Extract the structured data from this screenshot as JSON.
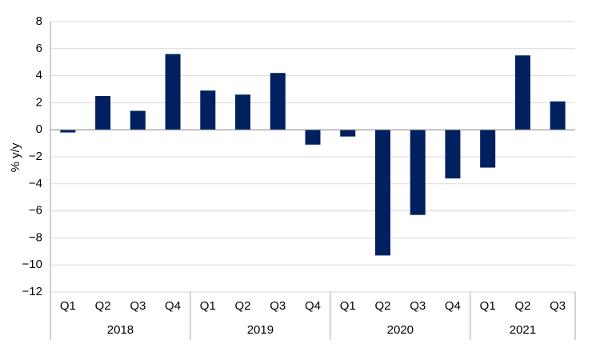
{
  "chart_data": {
    "type": "bar",
    "ylabel": "% y/y",
    "ylim": [
      -12,
      8
    ],
    "yticks": [
      8,
      6,
      4,
      2,
      0,
      -2,
      -4,
      -6,
      -8,
      -10,
      -12
    ],
    "grid": true,
    "bar_color": "#002060",
    "gridline_color": "#d9d9d9",
    "axis_color": "#a6a6a6",
    "categories": [
      "Q1",
      "Q2",
      "Q3",
      "Q4",
      "Q1",
      "Q2",
      "Q3",
      "Q4",
      "Q1",
      "Q2",
      "Q3",
      "Q4",
      "Q1",
      "Q2",
      "Q3"
    ],
    "groups": [
      {
        "label": "2018",
        "count": 4
      },
      {
        "label": "2019",
        "count": 4
      },
      {
        "label": "2020",
        "count": 4
      },
      {
        "label": "2021",
        "count": 3
      }
    ],
    "series": [
      {
        "values": [
          -0.2,
          2.5,
          1.4,
          5.6,
          2.9,
          2.6,
          4.2,
          -1.1,
          -0.5,
          -9.3,
          -6.3,
          -3.6,
          -2.8,
          5.5,
          2.1
        ]
      }
    ]
  }
}
